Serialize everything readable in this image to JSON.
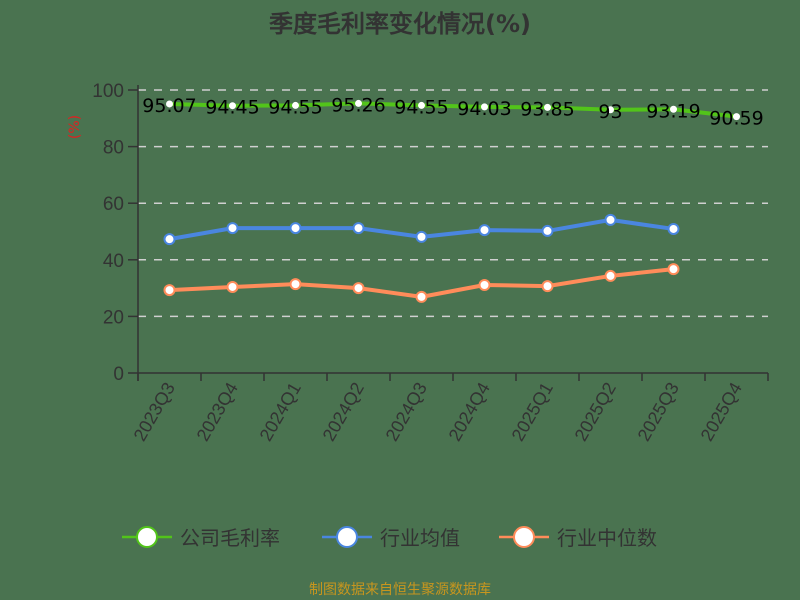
{
  "title": "季度毛利率变化情况(%)",
  "source": "制图数据来自恒生聚源数据库",
  "chart_data": {
    "type": "line",
    "title": "季度毛利率变化情况(%)",
    "xlabel": "",
    "ylabel": "(%)",
    "ylim": [
      0,
      100
    ],
    "yticks": [
      0,
      20,
      40,
      60,
      80,
      100
    ],
    "grid": true,
    "legend_position": "bottom",
    "categories": [
      "2023Q3",
      "2023Q4",
      "2024Q1",
      "2024Q2",
      "2024Q3",
      "2024Q4",
      "2025Q1",
      "2025Q2",
      "2025Q3",
      "2025Q4"
    ],
    "series": [
      {
        "name": "公司毛利率",
        "color": "#52c41a",
        "values": [
          95.07,
          94.45,
          94.55,
          95.26,
          94.55,
          94.03,
          93.85,
          93,
          93.19,
          90.59
        ],
        "labels": [
          "95.07",
          "94.45",
          "94.55",
          "95.26",
          "94.55",
          "94.03",
          "93.85",
          "93",
          "93.19",
          "90.59"
        ]
      },
      {
        "name": "行业均值",
        "color": "#4a86e0",
        "values": [
          47.3,
          51.2,
          51.2,
          51.2,
          48.1,
          50.5,
          50.2,
          54.1,
          50.9,
          null
        ]
      },
      {
        "name": "行业中位数",
        "color": "#ff8c5a",
        "values": [
          29.3,
          30.4,
          31.4,
          30.0,
          26.9,
          31.1,
          30.7,
          34.3,
          36.7,
          null
        ]
      }
    ]
  }
}
